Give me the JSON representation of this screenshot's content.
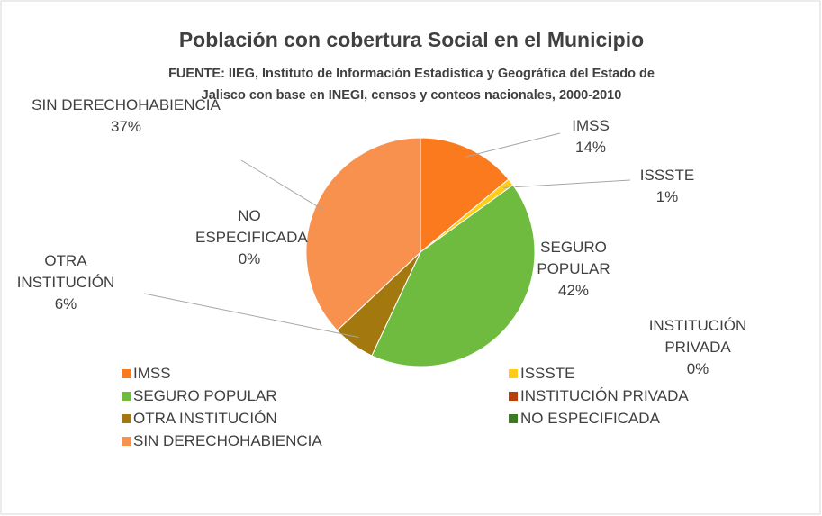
{
  "chart_data": {
    "type": "pie",
    "title": "Población con cobertura Social en el Municipio",
    "subtitle": [
      "FUENTE: IIEG, Instituto de Información Estadística y Geográfica del Estado de",
      "Jalisco con base en INEGI, censos y conteos nacionales, 2000-2010"
    ],
    "categories": [
      "IMSS",
      "ISSSTE",
      "SEGURO POPULAR",
      "INSTITUCIÓN PRIVADA",
      "OTRA INSTITUCIÓN",
      "NO ESPECIFICADA",
      "SIN DERECHOHABIENCIA"
    ],
    "values": [
      14,
      1,
      42,
      0,
      6,
      0,
      37
    ],
    "value_labels": [
      "14%",
      "1%",
      "42%",
      "0%",
      "6%",
      "0%",
      "37%"
    ],
    "colors": [
      "#fc7a1e",
      "#ffcc1a",
      "#6fbb3f",
      "#b8400a",
      "#a3780f",
      "#3d7a24",
      "#f7914d"
    ]
  }
}
